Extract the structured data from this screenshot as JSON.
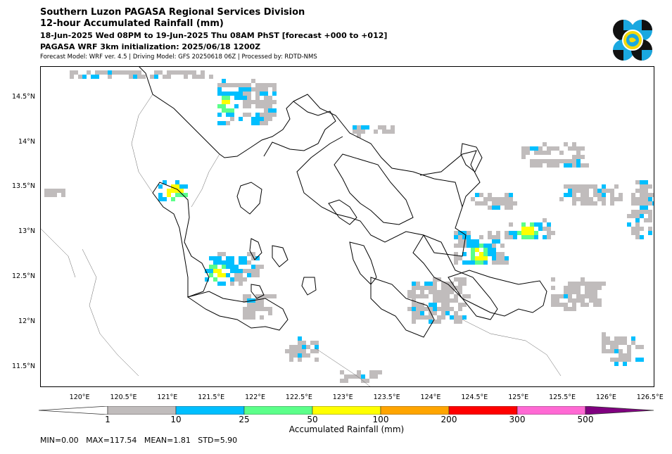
{
  "header": {
    "line1": "Southern Luzon PAGASA Regional Services Division",
    "line2": "12-hour Accumulated Rainfall (mm)",
    "line3": "18-Jun-2025 Wed 08PM to 19-Jun-2025 Thu 08AM PhST [forecast +000 to +012]",
    "line4": "PAGASA WRF 3km initialization: 2025/06/18 1200Z",
    "line5": "Forecast Model: WRF ver. 4.5 | Driving Model: GFS 20250618 06Z | Processed by: RDTD-NMS"
  },
  "logo": {
    "name": "pagasa-logo-icon",
    "colors": [
      "#111111",
      "#1aa8e0",
      "#f5d90a"
    ]
  },
  "map": {
    "lat_labels": [
      "14.5°N",
      "14°N",
      "13.5°N",
      "13°N",
      "12.5°N",
      "12°N",
      "11.5°N"
    ],
    "lat_values": [
      14.5,
      14.0,
      13.5,
      13.0,
      12.5,
      12.0,
      11.5
    ],
    "lon_labels": [
      "120°E",
      "120.5°E",
      "121°E",
      "121.5°E",
      "122°E",
      "122.5°E",
      "123°E",
      "123.5°E",
      "124°E",
      "124.5°E",
      "125°E",
      "125.5°E",
      "126°E",
      "126.5°E"
    ],
    "lon_values": [
      120.0,
      120.5,
      121.0,
      121.5,
      122.0,
      122.5,
      123.0,
      123.5,
      124.0,
      124.5,
      125.0,
      125.5,
      126.0,
      126.5
    ],
    "lon_range": [
      119.55,
      126.55
    ],
    "lat_range": [
      11.28,
      14.85
    ]
  },
  "colorbar": {
    "label": "Accumulated Rainfall (mm)",
    "ticks": [
      "1",
      "10",
      "25",
      "50",
      "100",
      "200",
      "300",
      "500"
    ],
    "colors": [
      "#c0bcbc",
      "#00bfff",
      "#5cff8a",
      "#ffff00",
      "#ffa500",
      "#ff0000",
      "#ff69d4",
      "#800080"
    ],
    "under_color": "#ffffff"
  },
  "stats": {
    "text": "MIN=0.00   MAX=117.54   MEAN=1.81   STD=5.90"
  }
}
